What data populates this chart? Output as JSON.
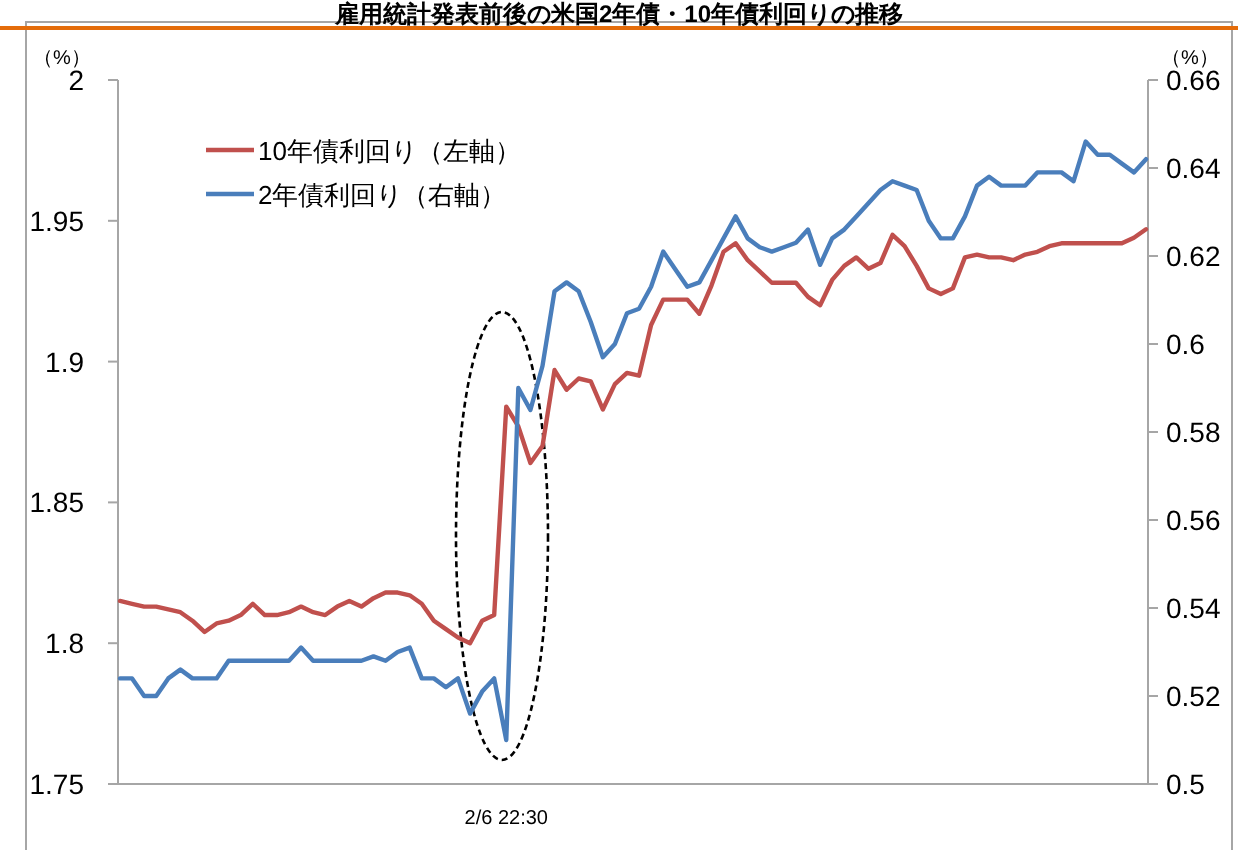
{
  "chart_data": {
    "type": "line",
    "title": "雇用統計発表前後の米国2年債・10年債利回りの推移",
    "ylabel": "（%）",
    "y2label": "（%）",
    "categories": [
      null,
      null,
      null,
      null,
      null,
      null,
      null,
      null,
      null,
      null,
      null,
      null,
      null,
      null,
      null,
      null,
      null,
      null,
      null,
      null,
      null,
      null,
      null,
      null,
      null,
      null,
      null,
      null,
      null,
      null,
      null,
      null,
      "2/6  22:30",
      null,
      null,
      null,
      null,
      null,
      null,
      null,
      null,
      null,
      null,
      null,
      null,
      null,
      null,
      null,
      null,
      null,
      null,
      null,
      null,
      null,
      null,
      null,
      null,
      null,
      null,
      null,
      null,
      null,
      null,
      null,
      null,
      null,
      null,
      null,
      null,
      null,
      null,
      null,
      null,
      null,
      null,
      null,
      null,
      null,
      null,
      null,
      null,
      null,
      null,
      null,
      null,
      null
    ],
    "ylim": [
      1.75,
      2
    ],
    "yticks": [
      1.75,
      1.8,
      1.85,
      1.9,
      1.95,
      2
    ],
    "y2lim": [
      0.5,
      0.66
    ],
    "y2ticks": [
      0.5,
      0.52,
      0.54,
      0.56,
      0.58,
      0.6,
      0.62,
      0.64,
      0.66
    ],
    "legend": "top left",
    "line_style": "solid",
    "series": [
      {
        "name": "10年債利回り（左軸）",
        "color": "#c0504d",
        "values": [
          1.815,
          1.814,
          1.813,
          1.813,
          1.812,
          1.811,
          1.808,
          1.804,
          1.807,
          1.808,
          1.81,
          1.814,
          1.81,
          1.81,
          1.811,
          1.813,
          1.811,
          1.81,
          1.813,
          1.815,
          1.813,
          1.816,
          1.818,
          1.818,
          1.817,
          1.814,
          1.808,
          1.805,
          1.802,
          1.8,
          1.808,
          1.81,
          1.884,
          1.877,
          1.864,
          1.87,
          1.897,
          1.89,
          1.894,
          1.893,
          1.883,
          1.892,
          1.896,
          1.895,
          1.913,
          1.922,
          1.922,
          1.922,
          1.917,
          1.927,
          1.939,
          1.942,
          1.936,
          1.932,
          1.928,
          1.928,
          1.928,
          1.923,
          1.92,
          1.929,
          1.934,
          1.937,
          1.933,
          1.935,
          1.945,
          1.941,
          1.934,
          1.926,
          1.924,
          1.926,
          1.937,
          1.938,
          1.937,
          1.937,
          1.936,
          1.938,
          1.939,
          1.941,
          1.942,
          1.942,
          1.942,
          1.942,
          1.942,
          1.942,
          1.944,
          1.947
        ]
      },
      {
        "name": "2年債利回り（右軸）",
        "color": "#4a7ebb",
        "axis": "y2",
        "values": [
          0.524,
          0.524,
          0.52,
          0.52,
          0.524,
          0.526,
          0.524,
          0.524,
          0.524,
          0.528,
          0.528,
          0.528,
          0.528,
          0.528,
          0.528,
          0.531,
          0.528,
          0.528,
          0.528,
          0.528,
          0.528,
          0.529,
          0.528,
          0.53,
          0.531,
          0.524,
          0.524,
          0.522,
          0.524,
          0.516,
          0.521,
          0.524,
          0.51,
          0.59,
          0.585,
          0.595,
          0.612,
          0.614,
          0.612,
          0.605,
          0.597,
          0.6,
          0.607,
          0.608,
          0.613,
          0.621,
          0.617,
          0.613,
          0.614,
          0.619,
          0.624,
          0.629,
          0.624,
          0.622,
          0.621,
          0.622,
          0.623,
          0.626,
          0.618,
          0.624,
          0.626,
          0.629,
          0.632,
          0.635,
          0.637,
          0.636,
          0.635,
          0.628,
          0.624,
          0.624,
          0.629,
          0.636,
          0.638,
          0.636,
          0.636,
          0.636,
          0.639,
          0.639,
          0.639,
          0.637,
          0.646,
          0.643,
          0.643,
          0.641,
          0.639,
          0.642
        ]
      }
    ]
  }
}
